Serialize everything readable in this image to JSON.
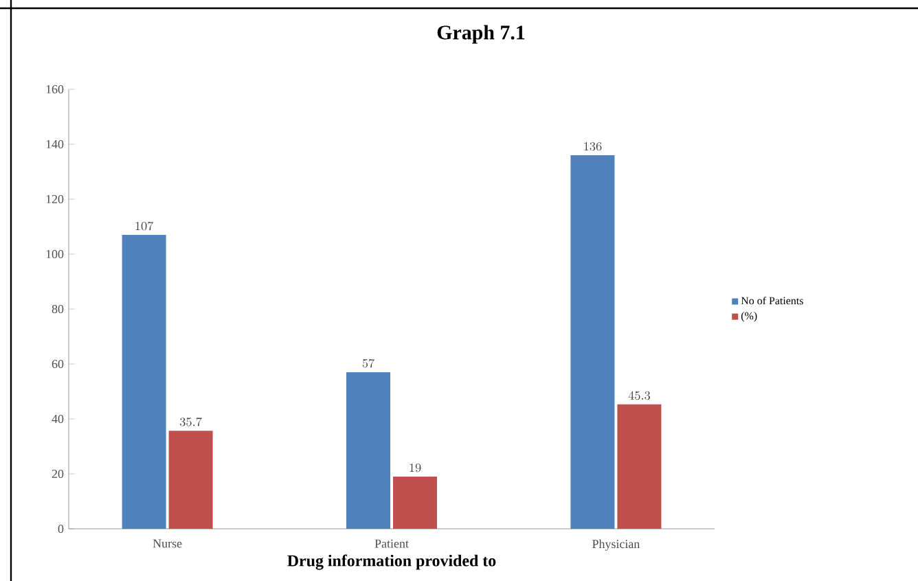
{
  "chart_data": {
    "type": "bar",
    "title": "Graph 7.1",
    "xlabel": "Drug information  provided to",
    "categories": [
      "Nurse",
      "Patient",
      "Physician"
    ],
    "series": [
      {
        "name": "No of Patients",
        "color": "#4f81bd",
        "values": [
          107,
          57,
          136
        ]
      },
      {
        "name": "(%)",
        "color": "#c0504d",
        "values": [
          35.7,
          19,
          45.3
        ]
      }
    ],
    "ylim": [
      0,
      160
    ],
    "yticks": [
      0,
      20,
      40,
      60,
      80,
      100,
      120,
      140,
      160
    ],
    "grid": false,
    "legend": "right",
    "data_labels": true
  }
}
